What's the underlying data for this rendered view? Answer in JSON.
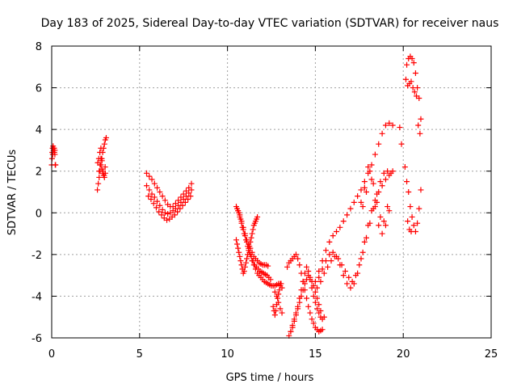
{
  "chart_data": {
    "type": "scatter",
    "title": "Day 183 of 2025, Sidereal Day-to-day VTEC variation (SDTVAR) for receiver naus",
    "xlabel": "GPS time / hours",
    "ylabel": "SDTVAR / TECUs",
    "xlim": [
      0,
      25
    ],
    "ylim": [
      -6,
      8
    ],
    "xticks": [
      0,
      5,
      10,
      15,
      20,
      25
    ],
    "yticks": [
      -6,
      -4,
      -2,
      0,
      2,
      4,
      6,
      8
    ],
    "grid": true,
    "marker": "+",
    "color": "#ff0000",
    "series": [
      {
        "x": [
          0.0,
          0.03,
          0.05,
          0.08,
          0.1,
          0.13,
          0.15,
          0.18,
          0.2,
          0.02,
          0.06,
          0.1,
          0.14,
          0.18,
          0.22
        ],
        "y": [
          2.3,
          2.9,
          3.1,
          3.2,
          3.1,
          3.0,
          2.9,
          2.8,
          2.3,
          2.6,
          2.8,
          3.0,
          3.1,
          3.0,
          2.3
        ]
      },
      {
        "x": [
          2.6,
          2.65,
          2.7,
          2.75,
          2.8,
          2.85,
          2.9,
          2.95,
          3.0,
          3.05,
          3.1,
          2.7,
          2.75,
          2.8,
          2.85,
          2.9,
          2.95,
          3.0,
          3.05,
          2.62,
          2.68,
          2.74,
          2.8,
          2.86,
          2.92,
          2.98,
          3.04
        ],
        "y": [
          1.1,
          1.4,
          1.7,
          2.0,
          2.3,
          2.6,
          2.9,
          3.1,
          3.3,
          3.5,
          3.6,
          2.0,
          2.3,
          2.6,
          2.1,
          1.9,
          1.8,
          1.7,
          1.9,
          2.4,
          2.6,
          2.9,
          3.1,
          2.5,
          2.0,
          1.8,
          2.2
        ]
      },
      {
        "x": [
          5.4,
          5.55,
          5.7,
          5.85,
          6.0,
          6.15,
          6.3,
          6.45,
          6.6,
          6.75,
          6.9,
          7.05,
          7.2,
          7.35,
          7.5,
          7.65,
          7.8,
          7.95,
          5.4,
          5.55,
          5.7,
          5.85,
          6.0,
          6.15,
          6.3,
          6.45,
          6.6,
          6.75,
          6.9,
          7.05,
          7.2,
          7.35,
          7.5,
          7.65,
          7.8,
          7.95,
          5.5,
          5.65,
          5.8,
          5.95,
          6.1,
          6.25,
          6.4,
          6.55,
          6.7,
          6.85,
          7.0,
          7.15,
          7.3,
          7.45,
          7.6,
          7.75,
          7.9
        ],
        "y": [
          1.9,
          1.75,
          1.6,
          1.4,
          1.2,
          1.0,
          0.8,
          0.6,
          0.4,
          0.3,
          0.3,
          0.45,
          0.6,
          0.75,
          0.9,
          1.05,
          1.2,
          1.4,
          1.3,
          1.1,
          0.9,
          0.75,
          0.55,
          0.35,
          0.15,
          0.0,
          -0.05,
          0.0,
          0.1,
          0.2,
          0.35,
          0.5,
          0.65,
          0.8,
          0.95,
          1.1,
          0.8,
          0.65,
          0.45,
          0.25,
          0.05,
          -0.1,
          -0.25,
          -0.35,
          -0.3,
          -0.2,
          -0.1,
          0.05,
          0.2,
          0.35,
          0.5,
          0.65,
          0.8
        ]
      },
      {
        "x": [
          10.5,
          10.6,
          10.7,
          10.8,
          10.9,
          11.0,
          11.1,
          11.2,
          11.3,
          11.4,
          11.5,
          11.6,
          11.7,
          11.8,
          11.9,
          12.0,
          12.1,
          12.2,
          12.3,
          12.4,
          12.5,
          12.6,
          12.7,
          12.8,
          12.9,
          13.0,
          10.55,
          10.65,
          10.75,
          10.85,
          10.95,
          11.05,
          11.15,
          11.25,
          11.35,
          11.45,
          11.55,
          11.65,
          11.75,
          11.85,
          11.95,
          12.05,
          12.15,
          12.25,
          12.35,
          12.45,
          10.6,
          10.7,
          10.8,
          10.9,
          11.0,
          11.1,
          11.2,
          11.3,
          11.4,
          11.5,
          11.6,
          11.7,
          11.8,
          11.9,
          12.0,
          12.1,
          12.2,
          12.3,
          10.5,
          10.55,
          10.6,
          10.65,
          10.7,
          10.75,
          10.8,
          10.85,
          10.9,
          10.95,
          11.0,
          11.05,
          11.1,
          11.15,
          11.2,
          11.25,
          11.3,
          11.35,
          11.4,
          11.45,
          11.5,
          11.55,
          11.6,
          11.65,
          11.7
        ],
        "y": [
          0.3,
          0.1,
          -0.2,
          -0.5,
          -0.8,
          -1.1,
          -1.4,
          -1.7,
          -2.0,
          -2.3,
          -2.5,
          -2.7,
          -2.9,
          -3.0,
          -3.1,
          -3.2,
          -3.3,
          -3.35,
          -3.4,
          -3.45,
          -3.5,
          -3.5,
          -3.5,
          -3.45,
          -3.4,
          -3.4,
          0.2,
          0.0,
          -0.3,
          -0.7,
          -1.0,
          -1.3,
          -1.6,
          -1.9,
          -2.1,
          -2.3,
          -2.5,
          -2.6,
          -2.7,
          -2.8,
          -2.85,
          -2.9,
          -2.95,
          -3.0,
          -3.1,
          -3.2,
          0.1,
          -0.1,
          -0.4,
          -0.7,
          -1.0,
          -1.3,
          -1.5,
          -1.7,
          -1.9,
          -2.1,
          -2.2,
          -2.3,
          -2.4,
          -2.45,
          -2.5,
          -2.5,
          -2.5,
          -2.55,
          -1.3,
          -1.5,
          -1.7,
          -1.9,
          -2.1,
          -2.3,
          -2.5,
          -2.7,
          -2.9,
          -2.8,
          -2.6,
          -2.4,
          -2.2,
          -2.0,
          -1.8,
          -1.6,
          -1.4,
          -1.2,
          -1.0,
          -0.8,
          -0.6,
          -0.5,
          -0.4,
          -0.3,
          -0.2
        ]
      },
      {
        "x": [
          12.6,
          12.65,
          12.7,
          12.75,
          12.8,
          12.85,
          12.9,
          12.95,
          13.0,
          13.05,
          13.1,
          12.7,
          12.8,
          12.9,
          13.0,
          13.1
        ],
        "y": [
          -4.5,
          -4.7,
          -4.9,
          -4.7,
          -4.4,
          -4.1,
          -3.9,
          -3.7,
          -3.5,
          -3.4,
          -3.6,
          -3.8,
          -4.0,
          -4.3,
          -4.6,
          -4.8
        ]
      },
      {
        "x": [
          13.4,
          13.5,
          13.6,
          13.7,
          13.8,
          13.9,
          14.0,
          14.1,
          14.2,
          14.3,
          14.4,
          14.5,
          14.6,
          14.7,
          14.8,
          14.9,
          15.0,
          15.1,
          15.2,
          15.3,
          15.4,
          13.5,
          13.6,
          13.7,
          13.8,
          13.9,
          14.0,
          14.1,
          14.2,
          14.3,
          14.4,
          14.5,
          14.6,
          14.7,
          14.8,
          14.9,
          15.0,
          15.1,
          15.2,
          15.3,
          13.6,
          13.7,
          13.8,
          13.9,
          14.0,
          14.1,
          14.2,
          14.3,
          14.4,
          14.5,
          14.6,
          14.7,
          14.8,
          14.9,
          15.0,
          15.1,
          15.2,
          15.3,
          15.4,
          15.5
        ],
        "y": [
          -2.6,
          -2.4,
          -2.3,
          -2.2,
          -2.1,
          -2.0,
          -2.2,
          -2.5,
          -2.9,
          -3.3,
          -3.7,
          -4.1,
          -4.5,
          -4.8,
          -5.1,
          -5.3,
          -5.5,
          -5.6,
          -5.7,
          -5.65,
          -5.6,
          -5.9,
          -5.7,
          -5.5,
          -5.2,
          -4.9,
          -4.6,
          -4.3,
          -4.0,
          -3.7,
          -3.4,
          -3.2,
          -3.0,
          -3.1,
          -3.3,
          -3.5,
          -3.8,
          -4.1,
          -4.4,
          -4.7,
          -5.7,
          -5.4,
          -5.1,
          -4.8,
          -4.5,
          -4.1,
          -3.7,
          -3.3,
          -2.9,
          -2.6,
          -2.8,
          -3.2,
          -3.6,
          -4.0,
          -4.3,
          -4.6,
          -4.8,
          -5.0,
          -5.1,
          -5.0
        ]
      },
      {
        "x": [
          15.0,
          15.2,
          15.4,
          15.6,
          15.8,
          16.0,
          16.2,
          16.4,
          16.6,
          16.8,
          17.0,
          17.2,
          17.4,
          17.6,
          17.8,
          18.0,
          18.2,
          18.4,
          18.6,
          18.8,
          19.0,
          19.2,
          19.4,
          15.1,
          15.3,
          15.5,
          15.7,
          15.9,
          16.1,
          16.3,
          16.5,
          16.7,
          16.9,
          17.1,
          17.3,
          17.5,
          17.7,
          17.9,
          18.1,
          18.3,
          18.5,
          18.7,
          18.9,
          19.1,
          19.3,
          15.2,
          15.4,
          15.6,
          15.8,
          16.0,
          16.2,
          16.4,
          16.6,
          16.8,
          17.0,
          17.2,
          17.4,
          17.6,
          17.8,
          18.0,
          18.2,
          18.4,
          18.6,
          18.8,
          19.0,
          19.2,
          19.4
        ],
        "y": [
          -3.3,
          -2.8,
          -2.3,
          -1.8,
          -1.4,
          -1.1,
          -0.9,
          -0.7,
          -0.4,
          -0.1,
          0.2,
          0.5,
          0.8,
          1.1,
          1.5,
          1.9,
          2.3,
          2.8,
          3.3,
          3.8,
          4.2,
          4.3,
          4.2,
          -3.6,
          -3.3,
          -2.9,
          -2.6,
          -2.3,
          -2.1,
          -2.2,
          -2.5,
          -2.8,
          -3.1,
          -3.3,
          -3.0,
          -2.5,
          -1.9,
          -1.2,
          -0.5,
          0.2,
          0.9,
          1.5,
          1.9,
          2.0,
          1.9,
          -3.1,
          -2.7,
          -2.3,
          -2.0,
          -1.9,
          -2.1,
          -2.5,
          -3.0,
          -3.4,
          -3.6,
          -3.4,
          -2.9,
          -2.2,
          -1.4,
          -0.6,
          0.1,
          0.6,
          1.0,
          1.3,
          1.6,
          1.8,
          2.0
        ]
      },
      {
        "x": [
          17.6,
          17.8,
          18.0,
          18.2,
          18.4,
          18.6,
          18.8,
          19.0,
          19.2,
          17.7,
          17.9,
          18.1,
          18.3,
          18.5,
          18.7,
          18.9,
          19.1
        ],
        "y": [
          0.5,
          1.2,
          2.2,
          1.6,
          0.3,
          -0.6,
          -1.0,
          -0.6,
          0.1,
          0.3,
          1.0,
          2.0,
          1.4,
          0.5,
          -0.2,
          -0.4,
          0.3
        ]
      },
      {
        "x": [
          19.8,
          19.9,
          20.1,
          20.2,
          20.3,
          20.4,
          20.5,
          20.6,
          20.7,
          20.8,
          20.9,
          21.0,
          20.2,
          20.3,
          20.4,
          20.5,
          20.6,
          20.7,
          20.8,
          20.9,
          21.0,
          20.15,
          20.25,
          20.35,
          20.45,
          20.55,
          20.65,
          20.75,
          20.85,
          20.95,
          20.25,
          20.35,
          20.45
        ],
        "y": [
          4.1,
          3.3,
          2.2,
          1.5,
          1.0,
          0.3,
          -0.2,
          -0.6,
          -0.9,
          -0.5,
          0.2,
          1.1,
          7.1,
          7.4,
          7.5,
          7.4,
          7.2,
          6.7,
          6.0,
          5.5,
          4.5,
          6.4,
          6.1,
          6.2,
          6.3,
          6.0,
          5.8,
          5.6,
          4.2,
          3.8,
          -0.4,
          -0.8,
          -0.9
        ]
      }
    ]
  }
}
